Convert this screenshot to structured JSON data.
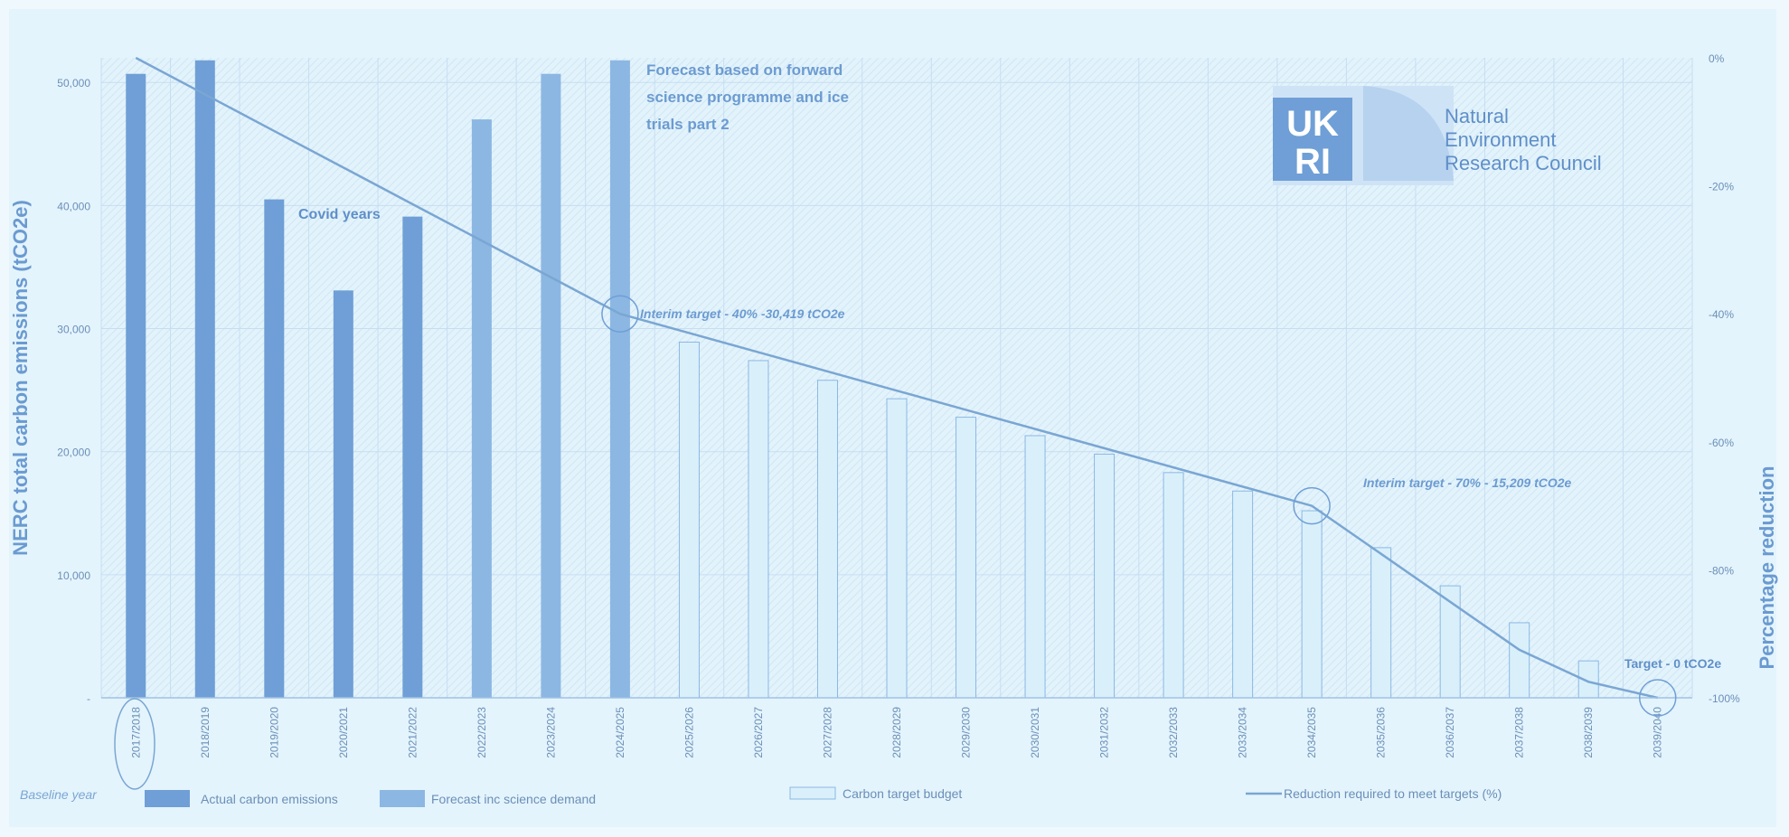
{
  "chart_data": {
    "type": "bar",
    "categories": [
      "2017/2018",
      "2018/2019",
      "2019/2020",
      "2020/2021",
      "2021/2022",
      "2022/2023",
      "2023/2024",
      "2024/2025",
      "2025/2026",
      "2026/2027",
      "2027/2028",
      "2028/2029",
      "2029/2030",
      "2030/2031",
      "2031/2032",
      "2032/2033",
      "2033/2034",
      "2034/2035",
      "2035/2036",
      "2036/2037",
      "2037/2038",
      "2038/2039",
      "2039/2040"
    ],
    "series": [
      {
        "name": "Actual carbon emissions",
        "kind": "bar",
        "color": "#6f9fd6",
        "values": [
          50700,
          51800,
          40500,
          33100,
          39100,
          null,
          null,
          null,
          null,
          null,
          null,
          null,
          null,
          null,
          null,
          null,
          null,
          null,
          null,
          null,
          null,
          null,
          null
        ]
      },
      {
        "name": "Forecast inc science demand",
        "kind": "bar",
        "color": "#8cb7e3",
        "values": [
          null,
          null,
          null,
          null,
          null,
          47000,
          50700,
          51800,
          null,
          null,
          null,
          null,
          null,
          null,
          null,
          null,
          null,
          null,
          null,
          null,
          null,
          null,
          null
        ]
      },
      {
        "name": "Carbon target budget",
        "kind": "bar-outline",
        "color": "#d9f0fb",
        "values": [
          null,
          null,
          null,
          null,
          null,
          null,
          null,
          null,
          28900,
          27400,
          25800,
          24300,
          22800,
          21300,
          19800,
          18300,
          16800,
          15200,
          12200,
          9100,
          6100,
          3000,
          null
        ]
      },
      {
        "name": "Reduction required to meet targets (%)",
        "kind": "line",
        "axis": "right",
        "color": "#7aa6d3",
        "values": [
          0,
          -5.71,
          -11.43,
          -17.14,
          -22.86,
          -28.57,
          -34.29,
          -40,
          -43,
          -46,
          -49,
          -52,
          -55,
          -58,
          -61,
          -64,
          -67,
          -70,
          -77.5,
          -85,
          -92.5,
          -97.5,
          -100
        ]
      }
    ],
    "ylabel": "NERC total carbon emissions (tCO2e)",
    "y2label": "Percentage reduction",
    "ylim": [
      0,
      52000
    ],
    "y2lim": [
      -100,
      0
    ],
    "yticks": [
      "-",
      "10,000",
      "20,000",
      "30,000",
      "40,000",
      "50,000"
    ],
    "y2ticks": [
      "0%",
      "-20%",
      "-40%",
      "-60%",
      "-80%",
      "-100%"
    ],
    "grid": true,
    "legend_position": "bottom",
    "annotations": {
      "covid": "Covid years",
      "forecast_line1": "Forecast based on forward",
      "forecast_line2": "science programme and ice",
      "forecast_line3": "trials part 2",
      "interim40": "Interim target - 40% -30,419 tCO2e",
      "interim70": "Interim target - 70% - 15,209 tCO2e",
      "target0": "Target - 0 tCO2e",
      "baseline": "Baseline year"
    }
  },
  "logo": {
    "mark_line1": "UK",
    "mark_line2": "RI",
    "text_line1": "Natural",
    "text_line2": "Environment",
    "text_line3": "Research Council"
  }
}
